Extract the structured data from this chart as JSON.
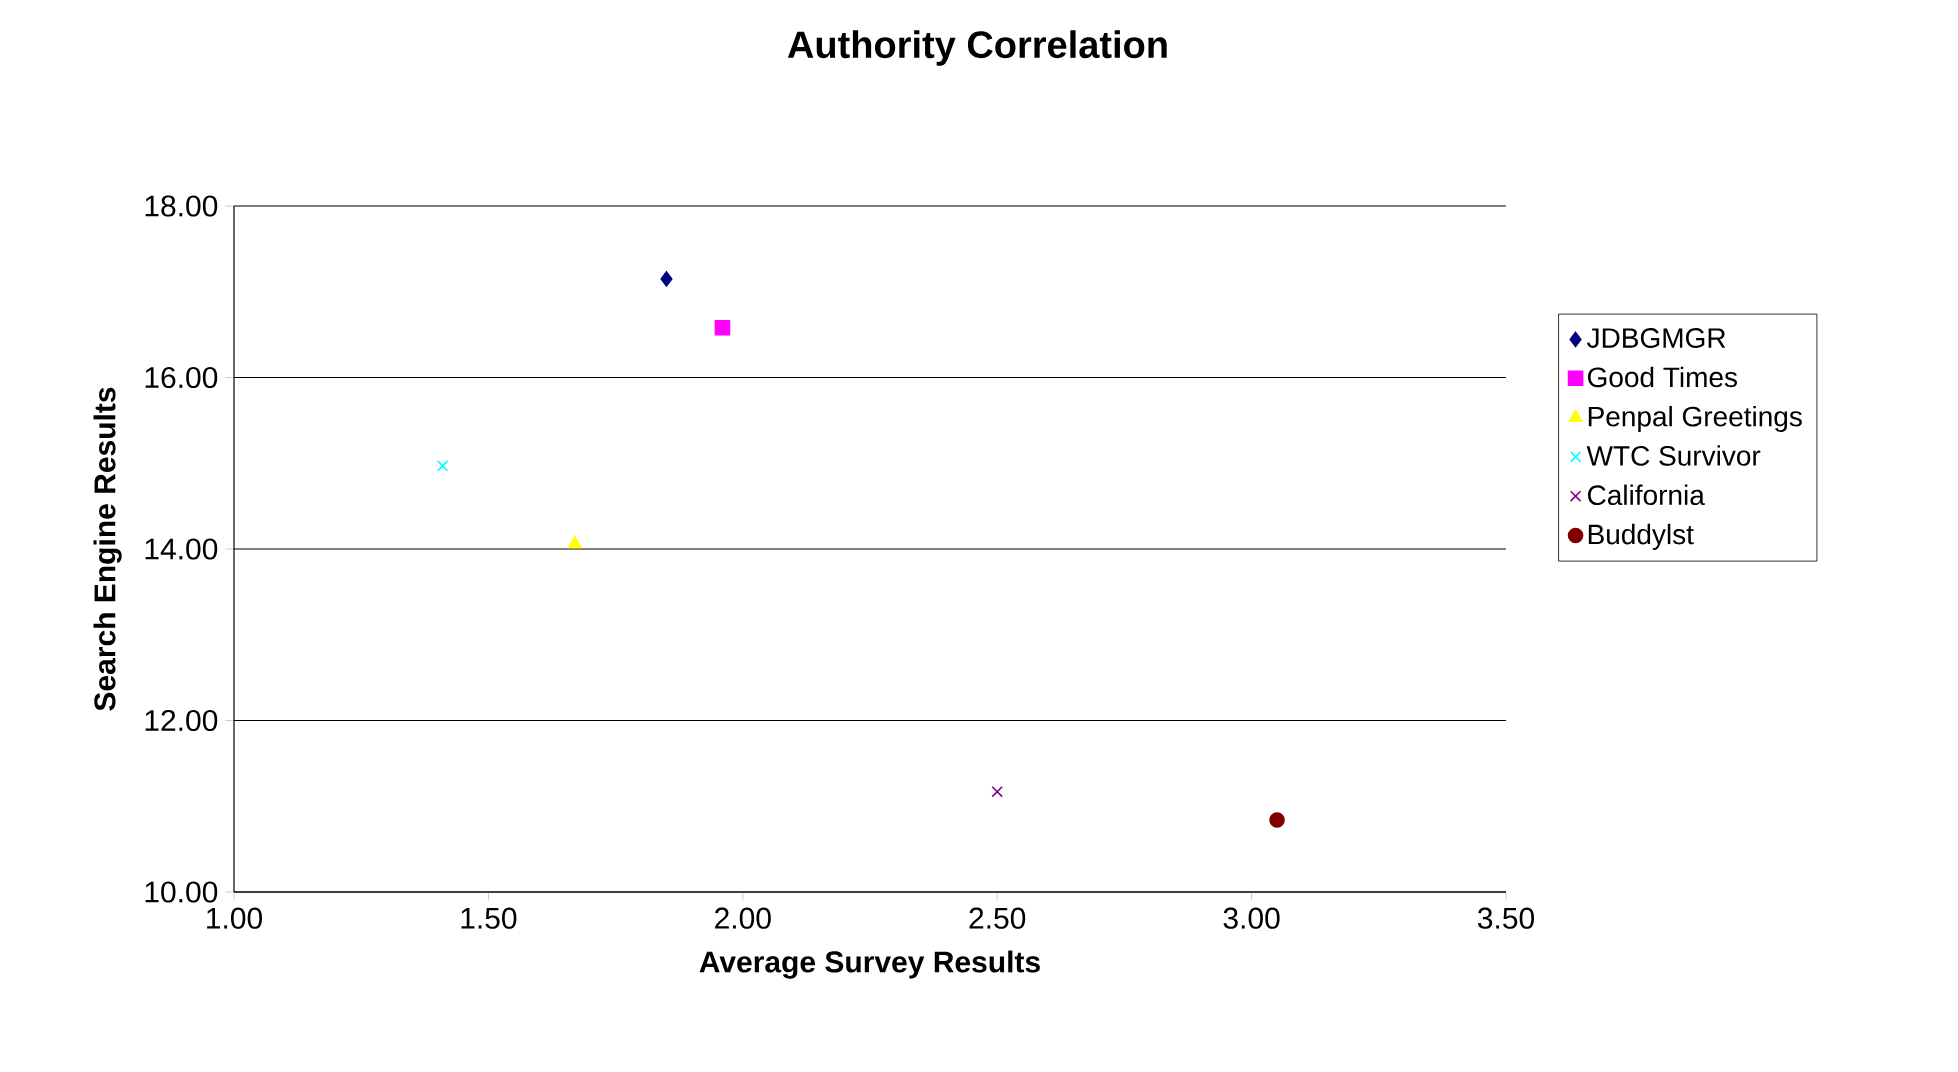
{
  "chart_data": {
    "type": "scatter",
    "title": "Authority Correlation",
    "xlabel": "Average Survey Results",
    "ylabel": "Search Engine Results",
    "xlim": [
      1,
      3.5
    ],
    "xticks": [
      {
        "value": 1,
        "label": "1.00"
      },
      {
        "value": 1.5,
        "label": "1.50"
      },
      {
        "value": 2,
        "label": "2.00"
      },
      {
        "value": 2.5,
        "label": "2.50"
      },
      {
        "value": 3,
        "label": "3.00"
      },
      {
        "value": 3.5,
        "label": "3.50"
      }
    ],
    "ylim": [
      10,
      18
    ],
    "yticks": [
      {
        "value": 10,
        "label": "10.00"
      },
      {
        "value": 12,
        "label": "12.00"
      },
      {
        "value": 14,
        "label": "14.00"
      },
      {
        "value": 16,
        "label": "16.00"
      },
      {
        "value": 18,
        "label": "18.00"
      }
    ],
    "grid": "y",
    "legend": "right",
    "series": [
      {
        "name": "JDBGMGR",
        "color": "#000080",
        "marker": "diamond",
        "x": [
          1.85
        ],
        "values": [
          17.15
        ]
      },
      {
        "name": "Good Times",
        "color": "#ff00ff",
        "marker": "square",
        "x": [
          1.96
        ],
        "values": [
          16.58
        ]
      },
      {
        "name": "Penpal Greetings",
        "color": "#ffff00",
        "marker": "triangle",
        "x": [
          1.67
        ],
        "values": [
          14.06
        ]
      },
      {
        "name": "WTC Survivor",
        "color": "#00ffff",
        "marker": "cross",
        "x": [
          1.41
        ],
        "values": [
          14.97
        ]
      },
      {
        "name": "California",
        "color": "#800080",
        "marker": "cross",
        "x": [
          2.5
        ],
        "values": [
          11.17
        ]
      },
      {
        "name": "Buddylst",
        "color": "#800000",
        "marker": "circle",
        "x": [
          3.05
        ],
        "values": [
          10.84
        ]
      }
    ]
  }
}
